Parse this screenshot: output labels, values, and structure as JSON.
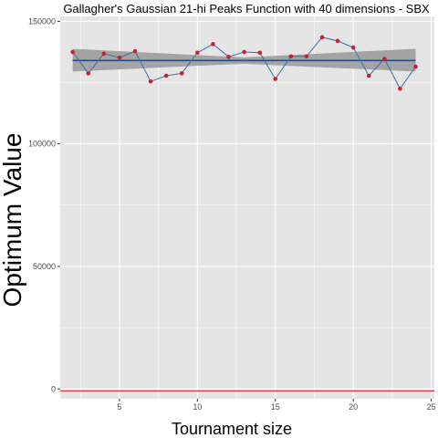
{
  "chart_data": {
    "type": "line",
    "title": "Gallagher's Gaussian 21-hi Peaks Function with 40 dimensions -  SBX",
    "xlabel": "Tournament size",
    "ylabel": "Optimum Value",
    "xlim": [
      1.2,
      25.2
    ],
    "ylim": [
      -4000,
      152000
    ],
    "x_ticks": [
      5,
      10,
      15,
      20,
      25
    ],
    "y_ticks": [
      0,
      50000,
      100000,
      150000
    ],
    "y_tick_labels": [
      "0",
      "50000",
      "100000",
      "150000"
    ],
    "grid": true,
    "series": [
      {
        "type": "line+points",
        "x": [
          2,
          3,
          4,
          5,
          6,
          7,
          8,
          9,
          10,
          11,
          12,
          13,
          14,
          15,
          16,
          17,
          18,
          19,
          20,
          21,
          22,
          23,
          24
        ],
        "y": [
          137500,
          128800,
          136800,
          135200,
          137800,
          125500,
          127800,
          128800,
          137200,
          140700,
          135500,
          137500,
          137200,
          126500,
          135700,
          135700,
          143500,
          142000,
          139300,
          127800,
          134700,
          122500,
          131500
        ],
        "line_color": "#3b6ea8",
        "point_color": "#cc1f2f"
      }
    ],
    "trend": {
      "x": [
        2,
        24
      ],
      "y": [
        134000,
        134000
      ],
      "ci_lower_ends": [
        129500,
        129500
      ],
      "ci_upper_ends": [
        138800,
        138800
      ],
      "ci_mid": [
        132700,
        135300
      ],
      "line_color": "#1f4e8c",
      "band_color": "#999999"
    },
    "hline": {
      "y": -800,
      "color": "#e8323a"
    },
    "colors": {
      "panel": "#e5e5e5",
      "grid": "#ffffff"
    }
  }
}
